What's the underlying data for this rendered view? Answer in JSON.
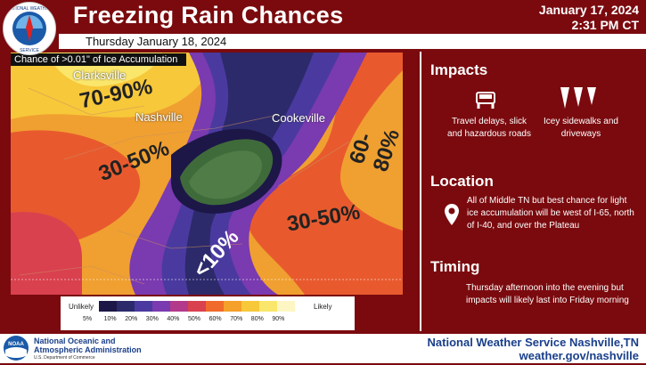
{
  "header": {
    "title": "Freezing Rain Chances",
    "issue_date": "January 17, 2024",
    "issue_time": "2:31 PM CT",
    "logo_text": "NATIONAL WEATHER SERVICE"
  },
  "subtitle": "Thursday January 18, 2024",
  "map": {
    "label": "Chance of >0.01\" of Ice Accumulation",
    "cities": [
      "Clarksville",
      "Nashville",
      "Cookeville"
    ],
    "zone_labels": [
      "70-90%",
      "30-50%",
      "60-80%",
      "30-50%",
      "<10%"
    ]
  },
  "legend": {
    "unlikely": "Unlikely",
    "likely": "Likely",
    "ticks": [
      "5%",
      "10%",
      "20%",
      "30%",
      "40%",
      "50%",
      "60%",
      "70%",
      "80%",
      "90%"
    ],
    "colors": [
      "#1c1747",
      "#2c2a6b",
      "#4a3aa0",
      "#7a3ab0",
      "#b33a8a",
      "#d9414f",
      "#f06a2b",
      "#f5a02a",
      "#f7c83a",
      "#fae66b",
      "#fdf6c2"
    ]
  },
  "impacts": {
    "heading": "Impacts",
    "travel": "Travel delays, slick and hazardous roads",
    "sidewalks": "Icey sidewalks and driveways"
  },
  "location": {
    "heading": "Location",
    "text": "All of Middle TN but best chance for light ice accumulation will be west of I-65, north of I-40, and over the Plateau"
  },
  "timing": {
    "heading": "Timing",
    "text": "Thursday afternoon into the evening but impacts will likely last into Friday morning"
  },
  "footer": {
    "noaa_line1": "National Oceanic and",
    "noaa_line2": "Atmospheric Administration",
    "noaa_line3": "U.S. Department of Commerce",
    "noaa_logo": "NOAA",
    "office": "National Weather Service Nashville,TN",
    "url": "weather.gov/nashville"
  }
}
